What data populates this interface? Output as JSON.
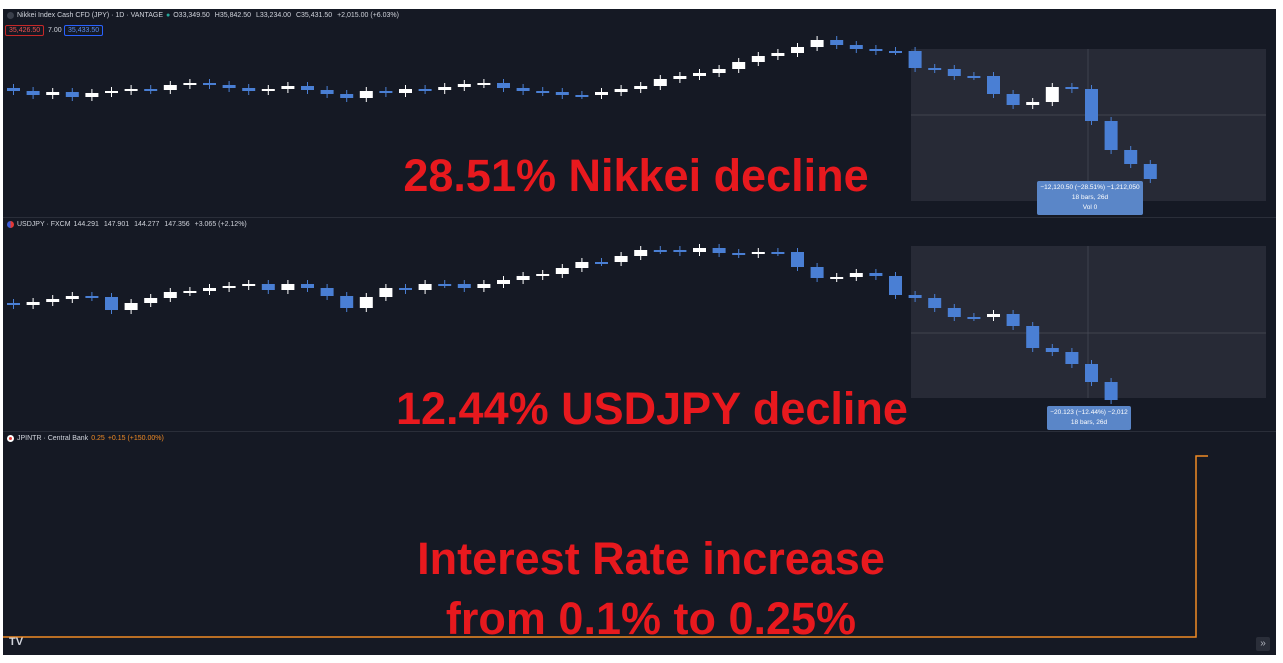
{
  "colors": {
    "up": "#ffffff",
    "down": "#4a7fd4",
    "rate": "#f08a24",
    "annotation": "#e8191e",
    "background": "#151924"
  },
  "nikkei": {
    "icon": "index-icon",
    "legend_title": "Nikkei Index Cash CFD (JPY) · 1D · VANTAGE",
    "open": "O33,349.50",
    "high": "H35,842.50",
    "low": "L33,234.00",
    "close": "C35,431.50",
    "change": "+2,015.00 (+6.03%)",
    "sell_price": "35,426.50",
    "spread": "7.00",
    "buy_price": "35,433.50",
    "measure": {
      "line1": "−12,120.50 (−28.51%) −1,212,050",
      "line2": "18 bars, 26d",
      "line3": "Vol 0"
    },
    "annotation": "28.51% Nikkei decline"
  },
  "usdjpy": {
    "icon": "currency-flag-icon",
    "legend_title": "USDJPY · FXCM",
    "open": "144.291",
    "high": "147.901",
    "low": "144.277",
    "close": "147.356",
    "change": "+3.065 (+2.12%)",
    "measure": {
      "line1": "−20.123 (−12.44%) −2,012",
      "line2": "18 bars, 26d"
    },
    "annotation": "12.44% USDJPY decline"
  },
  "rate": {
    "icon": "japan-flag-icon",
    "legend_title": "JPINTR · Central Bank",
    "value": "0.25",
    "change": "+0.15 (+150.00%)",
    "series": [
      0.1,
      0.25
    ],
    "annotation_line1": "Interest Rate increase",
    "annotation_line2": "from 0.1% to 0.25%"
  },
  "footer": {
    "logo": "TV",
    "scroll_icon": "double-chevron-right-icon"
  }
}
